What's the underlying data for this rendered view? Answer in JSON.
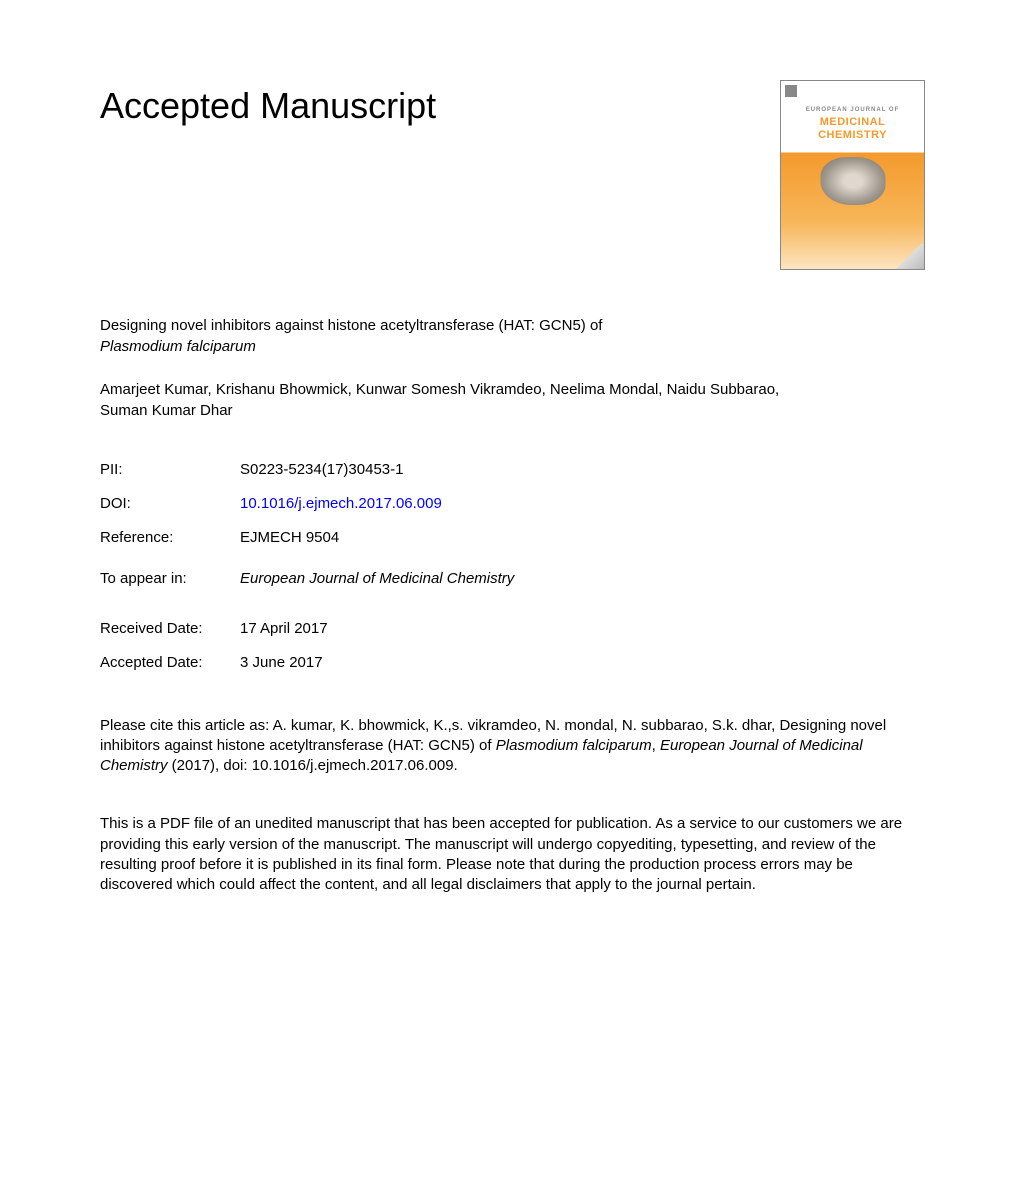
{
  "header": {
    "title": "Accepted Manuscript"
  },
  "cover": {
    "journal_super": "EUROPEAN JOURNAL OF",
    "journal_main1": "MEDICINAL",
    "journal_main2": "CHEMISTRY",
    "bg_gradient_top": "#ffffff",
    "bg_gradient_mid": "#f49a2c",
    "bg_gradient_bottom": "#fde4c1",
    "title_color": "#f49a2c"
  },
  "article": {
    "title_line1": "Designing novel inhibitors against histone acetyltransferase (HAT: GCN5) of",
    "title_line2_italic": "Plasmodium falciparum",
    "authors": "Amarjeet Kumar, Krishanu Bhowmick, Kunwar Somesh Vikramdeo, Neelima Mondal, Naidu Subbarao, Suman Kumar Dhar"
  },
  "meta": {
    "pii_label": "PII:",
    "pii_value": "S0223-5234(17)30453-1",
    "doi_label": "DOI:",
    "doi_value": "10.1016/j.ejmech.2017.06.009",
    "reference_label": "Reference:",
    "reference_value": "EJMECH 9504",
    "appear_label": "To appear in:",
    "appear_value": "European Journal of Medicinal Chemistry",
    "received_label": "Received Date:",
    "received_value": "17 April 2017",
    "accepted_label": "Accepted Date:",
    "accepted_value": "3 June 2017"
  },
  "citation": {
    "prefix": "Please cite this article as: A. kumar, K. bhowmick, K.,s. vikramdeo, N. mondal, N. subbarao, S.k. dhar, Designing novel inhibitors against histone acetyltransferase (HAT: GCN5) of ",
    "italic1": "Plasmodium falciparum",
    "mid": ", ",
    "italic2": "European Journal of Medicinal Chemistry",
    "suffix": " (2017), doi: 10.1016/j.ejmech.2017.06.009."
  },
  "disclaimer": {
    "text": "This is a PDF file of an unedited manuscript that has been accepted for publication. As a service to our customers we are providing this early version of the manuscript. The manuscript will undergo copyediting, typesetting, and review of the resulting proof before it is published in its final form. Please note that during the production process errors may be discovered which could affect the content, and all legal disclaimers that apply to the journal pertain."
  },
  "colors": {
    "text": "#000000",
    "link": "#0000ff",
    "background": "#ffffff"
  },
  "typography": {
    "title_fontsize": 36,
    "body_fontsize": 15,
    "font_family": "Arial, Helvetica, sans-serif"
  }
}
